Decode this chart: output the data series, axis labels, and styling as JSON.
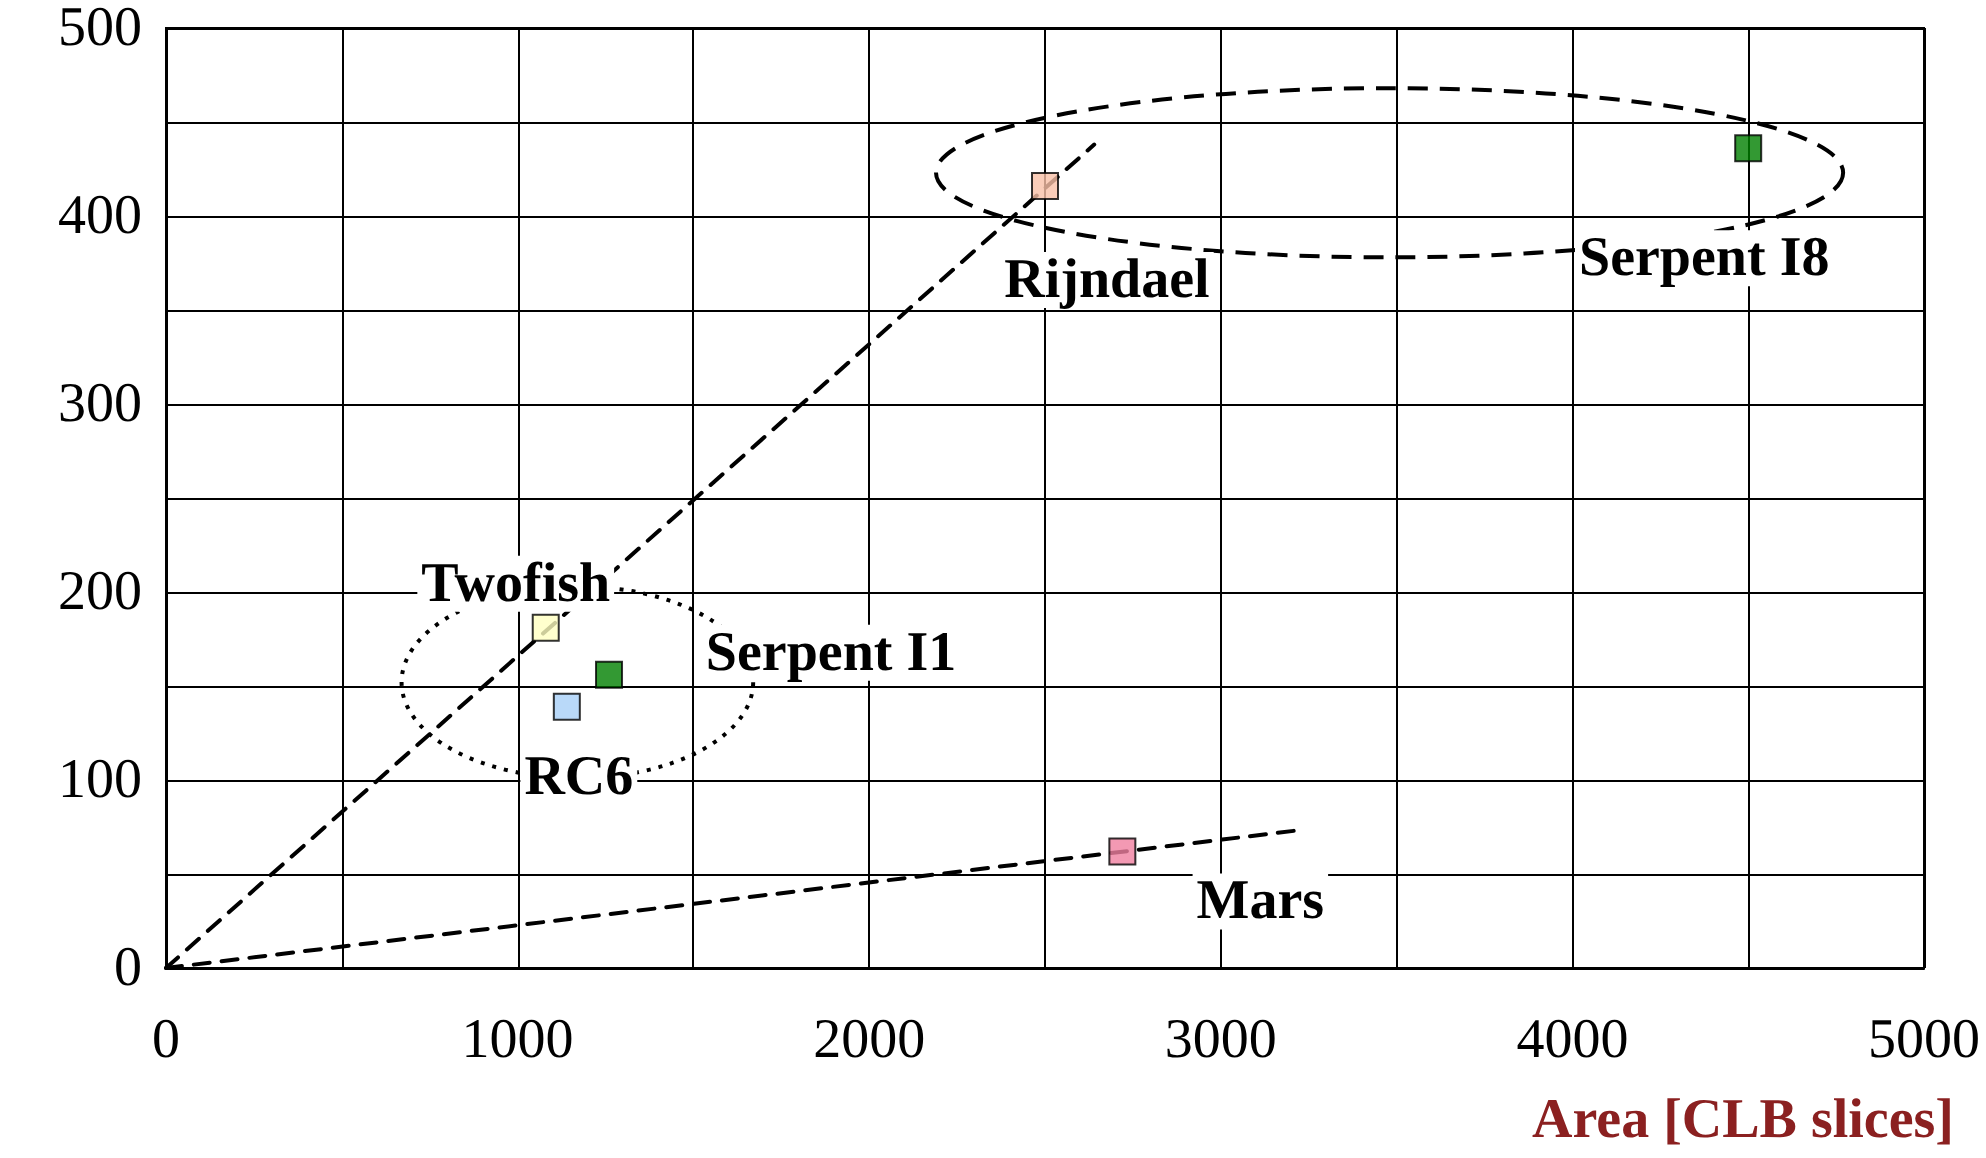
{
  "chart_data": {
    "type": "scatter",
    "xlabel": "Area [CLB slices]",
    "xlim": [
      0,
      5000
    ],
    "ylim": [
      0,
      500
    ],
    "xticks": [
      0,
      {
        "value": 500,
        "label": null
      },
      1000,
      {
        "value": 1500,
        "label": null
      },
      2000,
      {
        "value": 2500,
        "label": null
      },
      3000,
      {
        "value": 3500,
        "label": null
      },
      4000,
      {
        "value": 4500,
        "label": null
      },
      5000
    ],
    "yticks": [
      0,
      {
        "value": 50,
        "label": null
      },
      100,
      {
        "value": 150,
        "label": null
      },
      200,
      {
        "value": 250,
        "label": null
      },
      300,
      {
        "value": 350,
        "label": null
      },
      400,
      {
        "value": 450,
        "label": null
      },
      500
    ],
    "grid": true,
    "legend": false,
    "marker": "square",
    "series": [
      {
        "name": "Rijndael",
        "color": "#f9c0a8",
        "x": [
          2500
        ],
        "values": [
          416
        ]
      },
      {
        "name": "Serpent I8",
        "color": "#008000",
        "x": [
          4500
        ],
        "values": [
          436
        ]
      },
      {
        "name": "Twofish",
        "color": "#ffffc0",
        "x": [
          1080
        ],
        "values": [
          181
        ]
      },
      {
        "name": "Serpent I1",
        "color": "#008000",
        "x": [
          1260
        ],
        "values": [
          156
        ]
      },
      {
        "name": "RC6",
        "color": "#a8d0f8",
        "x": [
          1140
        ],
        "values": [
          139
        ]
      },
      {
        "name": "Mars",
        "color": "#f080a0",
        "x": [
          2720
        ],
        "values": [
          62
        ]
      },
      {
        "type": "line",
        "color": "#000000",
        "line_style": "dashed",
        "marker": "none",
        "x": [
          0,
          2640
        ],
        "values": [
          0,
          438
        ]
      },
      {
        "type": "line",
        "color": "#000000",
        "line_style": "dashed",
        "marker": "none",
        "x": [
          0,
          3210
        ],
        "values": [
          0,
          73
        ]
      }
    ]
  }
}
